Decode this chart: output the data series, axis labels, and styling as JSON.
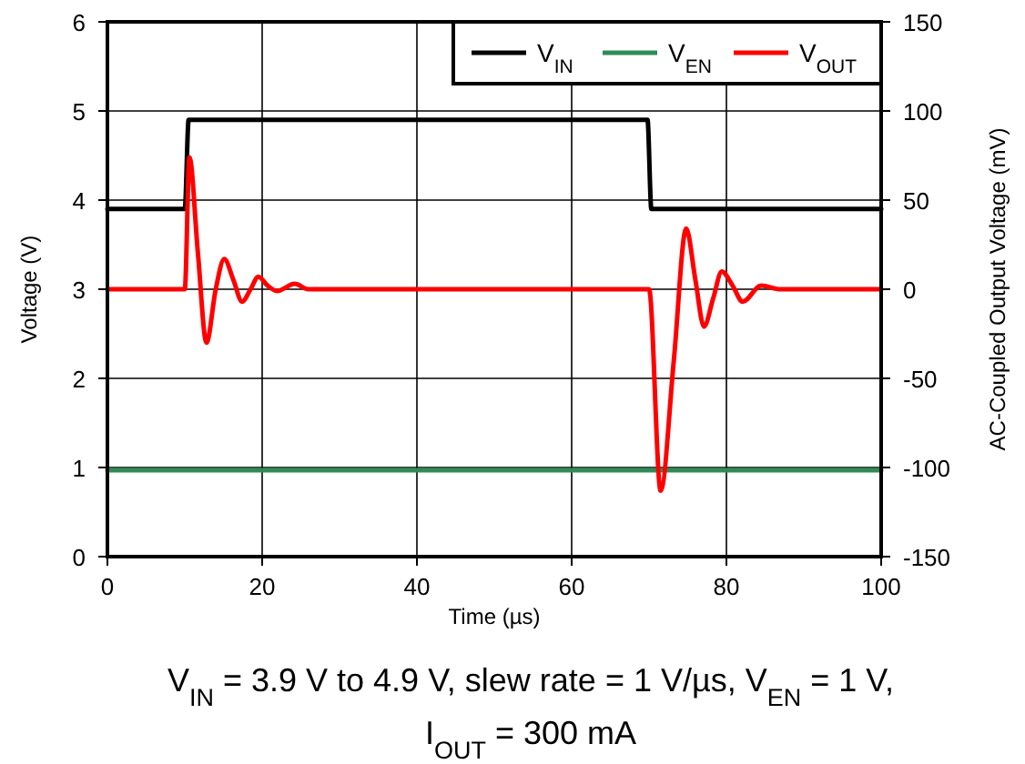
{
  "chart_data": {
    "type": "line",
    "xlabel": "Time (µs)",
    "ylabel": "Voltage (V)",
    "y2label": "AC-Coupled Output Voltage (mV)",
    "xlim": [
      0,
      100
    ],
    "xticks": [
      0,
      20,
      40,
      60,
      80,
      100
    ],
    "ylim": [
      0,
      6
    ],
    "yticks": [
      0,
      1,
      2,
      3,
      4,
      5,
      6
    ],
    "y2lim": [
      -150,
      150
    ],
    "y2ticks": [
      -150,
      -100,
      -50,
      0,
      50,
      100,
      150
    ],
    "grid": true,
    "legend": "top right",
    "line_style": "solid",
    "marker": "none",
    "series": [
      {
        "name": "V$_{IN}$",
        "color": "#000000",
        "x": [
          0,
          10,
          10.5,
          69.8,
          70.3,
          100
        ],
        "values": [
          3.9,
          3.9,
          4.9,
          4.9,
          3.9,
          3.9
        ]
      },
      {
        "name": "V$_{EN}$",
        "color": "#2e8b57",
        "x": [
          0,
          100
        ],
        "values": [
          0.97,
          0.97
        ]
      },
      {
        "name": "V$_{OUT}$",
        "color": "#ff0000",
        "axis": "y2",
        "x": [
          0,
          10,
          10.6,
          11.7,
          12.8,
          14,
          15.1,
          16.3,
          17.4,
          18.5,
          19.5,
          20.7,
          21.9,
          24.2,
          26,
          70,
          71.5,
          73.2,
          74.8,
          76,
          77.1,
          78.3,
          79.4,
          80.8,
          82.1,
          84.5,
          87,
          100
        ],
        "values": [
          0,
          0,
          74,
          20,
          -30,
          0,
          17,
          5,
          -7,
          0,
          7,
          2,
          -1,
          3,
          0,
          0,
          -113,
          -40,
          34,
          5,
          -21,
          -5,
          10,
          2,
          -7,
          2,
          0,
          0
        ]
      }
    ],
    "annotations": [
      "V$_{IN}$ = 3.9 V to 4.9 V, slew rate = 1 V/µs, V$_{EN}$ = 1 V,",
      "I$_{OUT}$ = 300 mA"
    ]
  }
}
